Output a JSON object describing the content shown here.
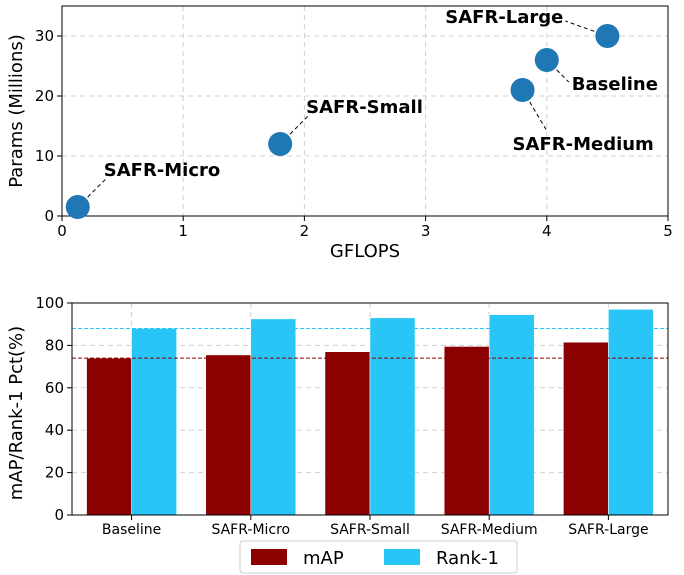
{
  "chart_data": [
    {
      "type": "scatter",
      "xlabel": "GFLOPS",
      "ylabel": "Params (Millions)",
      "xlim": [
        0,
        5
      ],
      "ylim": [
        0,
        35
      ],
      "xticks": [
        "0",
        "1",
        "2",
        "3",
        "4",
        "5"
      ],
      "yticks": [
        "0",
        "10",
        "20",
        "30"
      ],
      "grid": true,
      "marker_color": "#1f77b4",
      "points": [
        {
          "label": "SAFR-Micro",
          "x": 0.13,
          "y": 1.5,
          "label_anchor": "right-up"
        },
        {
          "label": "SAFR-Small",
          "x": 1.8,
          "y": 12,
          "label_anchor": "right-up"
        },
        {
          "label": "SAFR-Medium",
          "x": 3.8,
          "y": 21,
          "label_anchor": "below-right"
        },
        {
          "label": "Baseline",
          "x": 4.0,
          "y": 26,
          "label_anchor": "right-down"
        },
        {
          "label": "SAFR-Large",
          "x": 4.5,
          "y": 30,
          "label_anchor": "left-up"
        }
      ]
    },
    {
      "type": "bar",
      "ylabel": "mAP/Rank-1 Pct(%)",
      "ylim": [
        0,
        100
      ],
      "yticks": [
        "0",
        "20",
        "40",
        "60",
        "80",
        "100"
      ],
      "grid": true,
      "legend_position": "bottom",
      "categories": [
        "Baseline",
        "SAFR-Micro",
        "SAFR-Small",
        "SAFR-Medium",
        "SAFR-Large"
      ],
      "series": [
        {
          "name": "mAP",
          "color": "#8b0000",
          "values": [
            74,
            75.5,
            77,
            79.5,
            81.5
          ]
        },
        {
          "name": "Rank-1",
          "color": "#29c5f6",
          "values": [
            88,
            92.5,
            93,
            94.5,
            97
          ]
        }
      ],
      "reference_lines": [
        {
          "series": "mAP",
          "value": 74,
          "color": "#8b0000",
          "style": "dashed"
        },
        {
          "series": "Rank-1",
          "value": 88,
          "color": "#29c5f6",
          "style": "dashed"
        }
      ]
    }
  ]
}
